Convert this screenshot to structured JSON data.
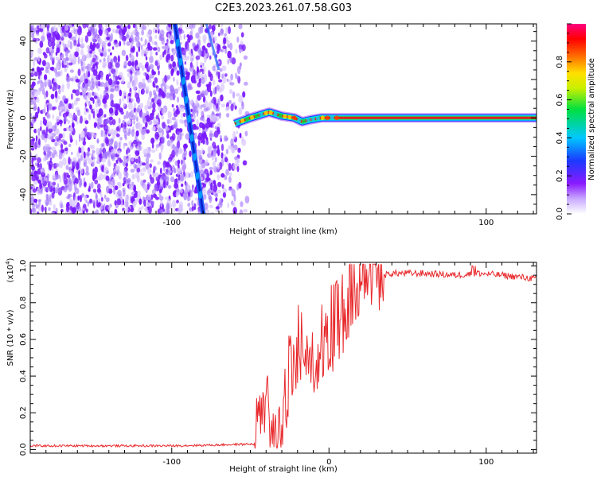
{
  "title": "C2E3.2023.261.07.58.G03",
  "colors": {
    "snr_line": "#e8282b",
    "track_outer": "#1b5cff",
    "track_inner": "#0a1fc8",
    "noise": "#7a1aff",
    "tail_core": "#e02020",
    "tail_halo": "#20e060"
  },
  "chart_data": [
    {
      "type": "heatmap",
      "name": "spectrogram",
      "xlabel": "Height of straight line (km)",
      "ylabel": "Frequency (Hz)",
      "xlim": [
        -190,
        132
      ],
      "ylim": [
        -50,
        49
      ],
      "xticks": [
        -100,
        0,
        100
      ],
      "xtick_labels": [
        "-100",
        "",
        "100"
      ],
      "yticks": [
        -40,
        -20,
        0,
        20,
        40
      ],
      "ytick_labels": [
        "-40",
        "-20",
        "0",
        "20",
        "40"
      ],
      "grid": false,
      "colorbar": {
        "label": "Normalized spectral amplitude",
        "range": [
          0,
          1
        ],
        "ticks": [
          0.0,
          0.2,
          0.4,
          0.6,
          0.8
        ],
        "tick_labels": [
          "0.0",
          "0.2",
          "0.4",
          "0.6",
          "0.8"
        ],
        "colormap": "rainbow (white-violet-blue-cyan-green-yellow-red-magenta)"
      },
      "features": {
        "noise_region_x": [
          -190,
          -58
        ],
        "track_main": {
          "x": [
            -98,
            -80
          ],
          "y": [
            49,
            -50
          ]
        },
        "track_faint": {
          "x": [
            -78,
            -70
          ],
          "y": [
            49,
            25
          ]
        },
        "signal_tail": {
          "x": [
            -60,
            -50,
            -42,
            -38,
            -30,
            -22,
            -17,
            -12,
            -5,
            0,
            10,
            132
          ],
          "y": [
            -3,
            0,
            2,
            3,
            1,
            0,
            -2,
            -1,
            0,
            0,
            0,
            0
          ]
        }
      }
    },
    {
      "type": "line",
      "name": "snr",
      "xlabel": "Height of straight line (km)",
      "ylabel": "SNR (10 * v/v)",
      "yscale_label": "(x10",
      "yscale_exp": "4",
      "xlim": [
        -190,
        132
      ],
      "ylim": [
        -0.02,
        1.02
      ],
      "xticks": [
        -100,
        0,
        100
      ],
      "xtick_labels": [
        "-100",
        "0",
        "100"
      ],
      "yticks": [
        0.0,
        0.2,
        0.4,
        0.6,
        0.8,
        1.0
      ],
      "ytick_labels": [
        "0.0",
        "0.2",
        "0.4",
        "0.6",
        "0.8",
        "1.0"
      ],
      "grid": false,
      "series": [
        {
          "x": [
            -190,
            -150,
            -100,
            -70,
            -47,
            -45,
            -43,
            -40,
            -38,
            -35,
            -30,
            -25,
            -22,
            -20,
            -15,
            -10,
            -5,
            0,
            5,
            10,
            15,
            20,
            25,
            30,
            35,
            40,
            50,
            60,
            80,
            95,
            110,
            132
          ],
          "y": [
            0.02,
            0.02,
            0.02,
            0.025,
            0.03,
            0.16,
            0.25,
            0.2,
            0.15,
            0.13,
            0.1,
            0.33,
            0.42,
            0.5,
            0.45,
            0.45,
            0.5,
            0.57,
            0.62,
            0.68,
            0.75,
            0.84,
            0.89,
            0.92,
            0.95,
            0.96,
            0.96,
            0.96,
            0.95,
            0.96,
            0.95,
            0.93
          ]
        }
      ]
    }
  ]
}
